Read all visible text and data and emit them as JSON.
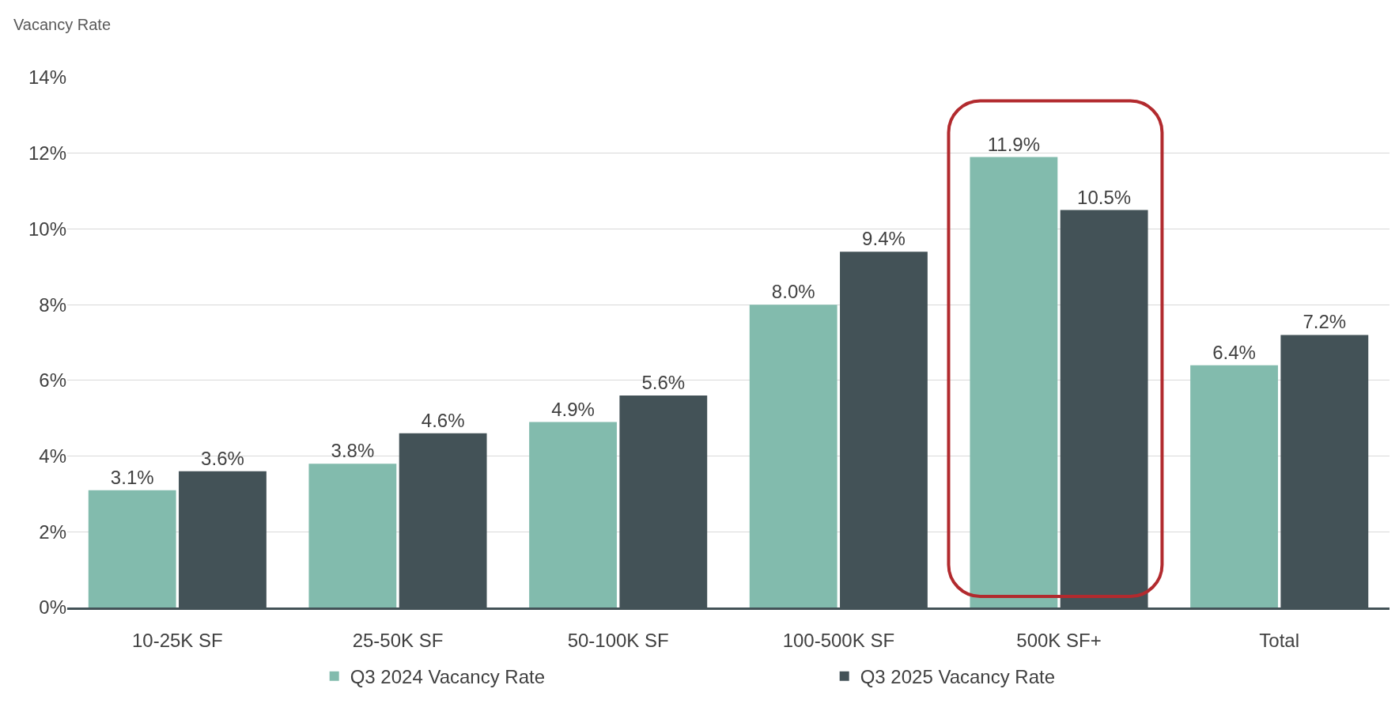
{
  "chart_data": {
    "type": "bar",
    "ylabel": "Vacancy Rate",
    "categories": [
      "10-25K SF",
      "25-50K SF",
      "50-100K SF",
      "100-500K SF",
      "500K SF+",
      "Total"
    ],
    "series": [
      {
        "name": "Q3 2024 Vacancy Rate",
        "color": "#82bbad",
        "values": [
          3.1,
          3.8,
          4.9,
          8.0,
          11.9,
          6.4
        ],
        "value_labels": [
          "3.1%",
          "3.8%",
          "4.9%",
          "8.0%",
          "11.9%",
          "6.4%"
        ]
      },
      {
        "name": "Q3 2025 Vacancy Rate",
        "color": "#435257",
        "values": [
          3.6,
          4.6,
          5.6,
          9.4,
          10.5,
          7.2
        ],
        "value_labels": [
          "3.6%",
          "4.6%",
          "5.6%",
          "9.4%",
          "10.5%",
          "7.2%"
        ]
      }
    ],
    "ylim": [
      0,
      14
    ],
    "yticks": [
      {
        "value": 0,
        "label": "0%"
      },
      {
        "value": 2,
        "label": "2%"
      },
      {
        "value": 4,
        "label": "4%"
      },
      {
        "value": 6,
        "label": "6%"
      },
      {
        "value": 8,
        "label": "8%"
      },
      {
        "value": 10,
        "label": "10%"
      },
      {
        "value": 12,
        "label": "12%"
      },
      {
        "value": 14,
        "label": "14%"
      }
    ],
    "grid": "y",
    "legend": "bottom"
  }
}
